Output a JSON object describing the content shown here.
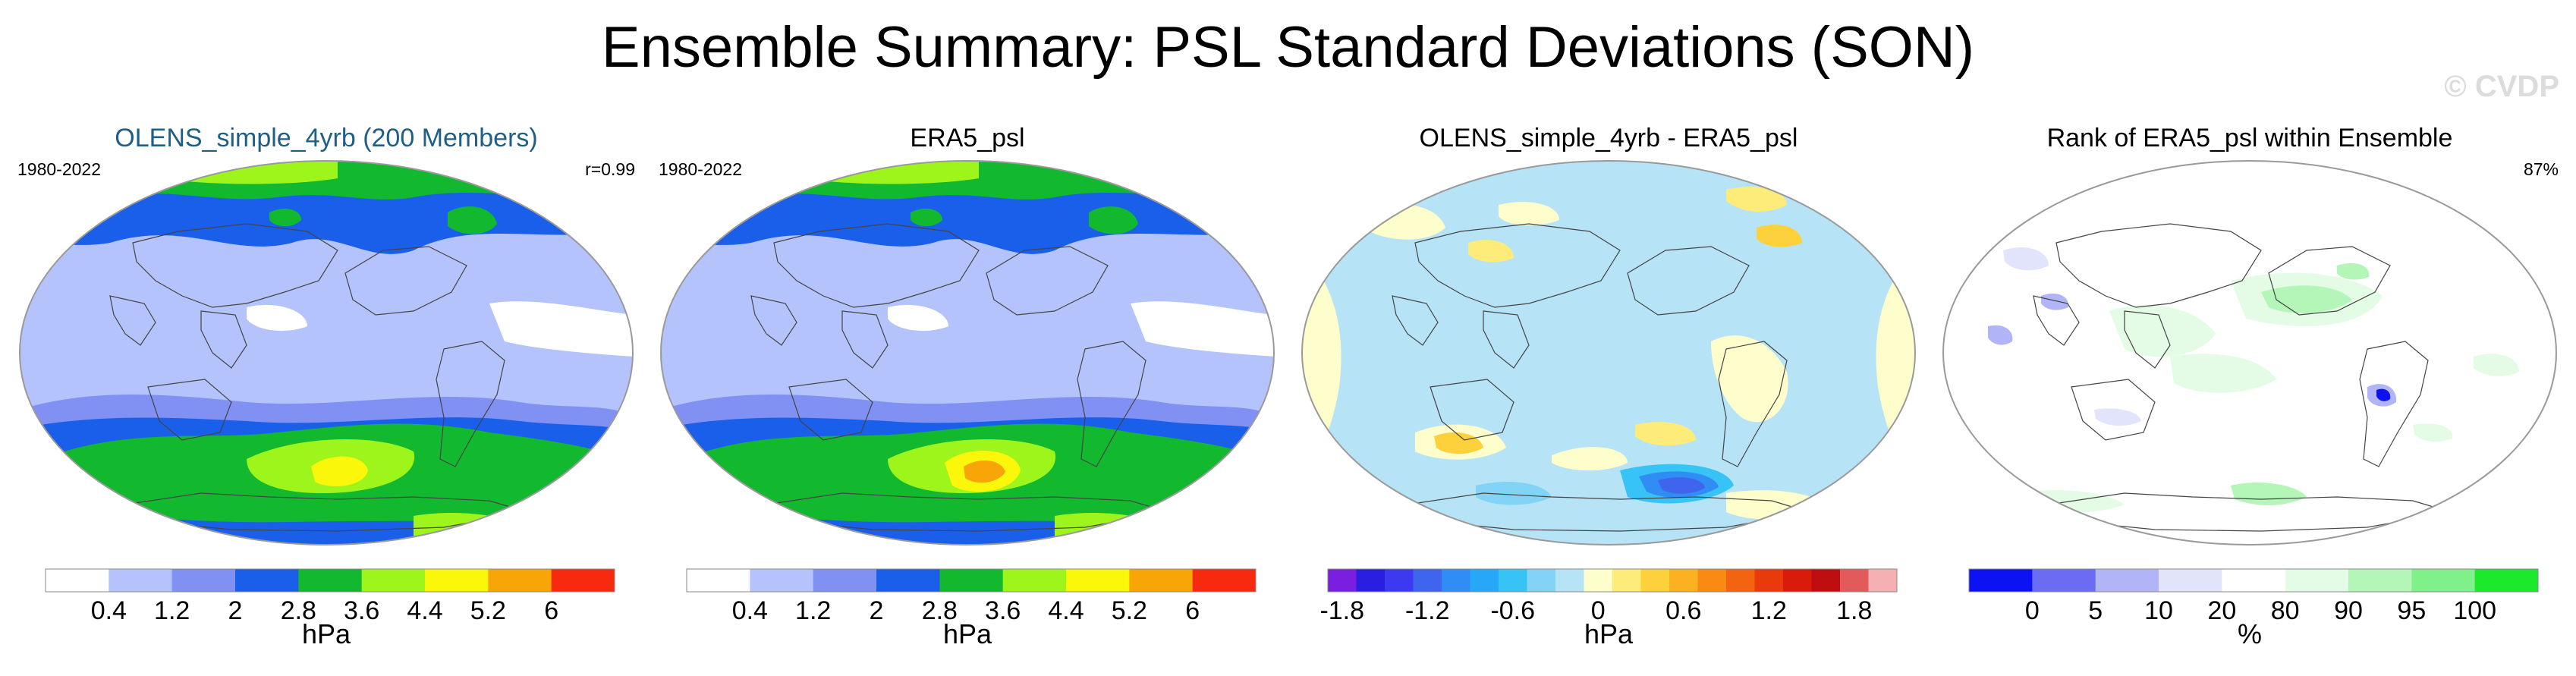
{
  "title": "Ensemble Summary: PSL Standard Deviations (SON)",
  "watermark": "© CVDP",
  "colors": {
    "ocean_title": "#1f5f86",
    "land_outline": "#444444",
    "map_border": "#9a9a9a"
  },
  "panels": [
    {
      "title": "OLENS_simple_4yrb (200 Members)",
      "title_color": "#1f5f86",
      "left_label": "1980-2022",
      "right_label": "r=0.99",
      "map_style": "std_ens",
      "colorbar": {
        "colors": [
          "#ffffff",
          "#b4c3fb",
          "#8191f3",
          "#1a5fea",
          "#12b82e",
          "#9ef51c",
          "#fbf70a",
          "#f7a507",
          "#f72a10"
        ],
        "ticks": [
          "0.4",
          "1.2",
          "2",
          "2.8",
          "3.6",
          "4.4",
          "5.2",
          "6"
        ],
        "unit": "hPa"
      }
    },
    {
      "title": "ERA5_psl",
      "title_color": "#000000",
      "left_label": "1980-2022",
      "right_label": "",
      "map_style": "std_obs",
      "colorbar": {
        "colors": [
          "#ffffff",
          "#b4c3fb",
          "#8191f3",
          "#1a5fea",
          "#12b82e",
          "#9ef51c",
          "#fbf70a",
          "#f7a507",
          "#f72a10"
        ],
        "ticks": [
          "0.4",
          "1.2",
          "2",
          "2.8",
          "3.6",
          "4.4",
          "5.2",
          "6"
        ],
        "unit": "hPa"
      }
    },
    {
      "title": "OLENS_simple_4yrb - ERA5_psl",
      "title_color": "#000000",
      "left_label": "",
      "right_label": "",
      "map_style": "diff",
      "colorbar": {
        "colors": [
          "#7a1fe0",
          "#2a1fe0",
          "#3b3af0",
          "#3f65ee",
          "#2f8df4",
          "#27a7f7",
          "#37c3f5",
          "#82d3f5",
          "#b7e3f7",
          "#fefecd",
          "#fdeb7a",
          "#fdd13c",
          "#fcb122",
          "#fa8a14",
          "#f2640f",
          "#e83a0a",
          "#d81b0b",
          "#bf0e0f",
          "#e25a5a",
          "#f5b1b1"
        ],
        "ticks": [
          "-1.8",
          "-1.2",
          "-0.6",
          "0",
          "0.6",
          "1.2",
          "1.8"
        ],
        "tick_positions": [
          0.5,
          3.5,
          6.5,
          9.5,
          12.5,
          15.5,
          18.5
        ],
        "unit": "hPa"
      }
    },
    {
      "title": "Rank of ERA5_psl within Ensemble",
      "title_color": "#000000",
      "left_label": "",
      "right_label": "87%",
      "map_style": "rank",
      "colorbar": {
        "colors": [
          "#0c12f2",
          "#6a6cf3",
          "#b2b4f8",
          "#e2e4fc",
          "#ffffff",
          "#e4fbe6",
          "#b3f6b8",
          "#7ff08a",
          "#1ce82c"
        ],
        "ticks": [
          "0",
          "5",
          "10",
          "20",
          "80",
          "90",
          "95",
          "100"
        ],
        "unit": "%"
      }
    }
  ]
}
